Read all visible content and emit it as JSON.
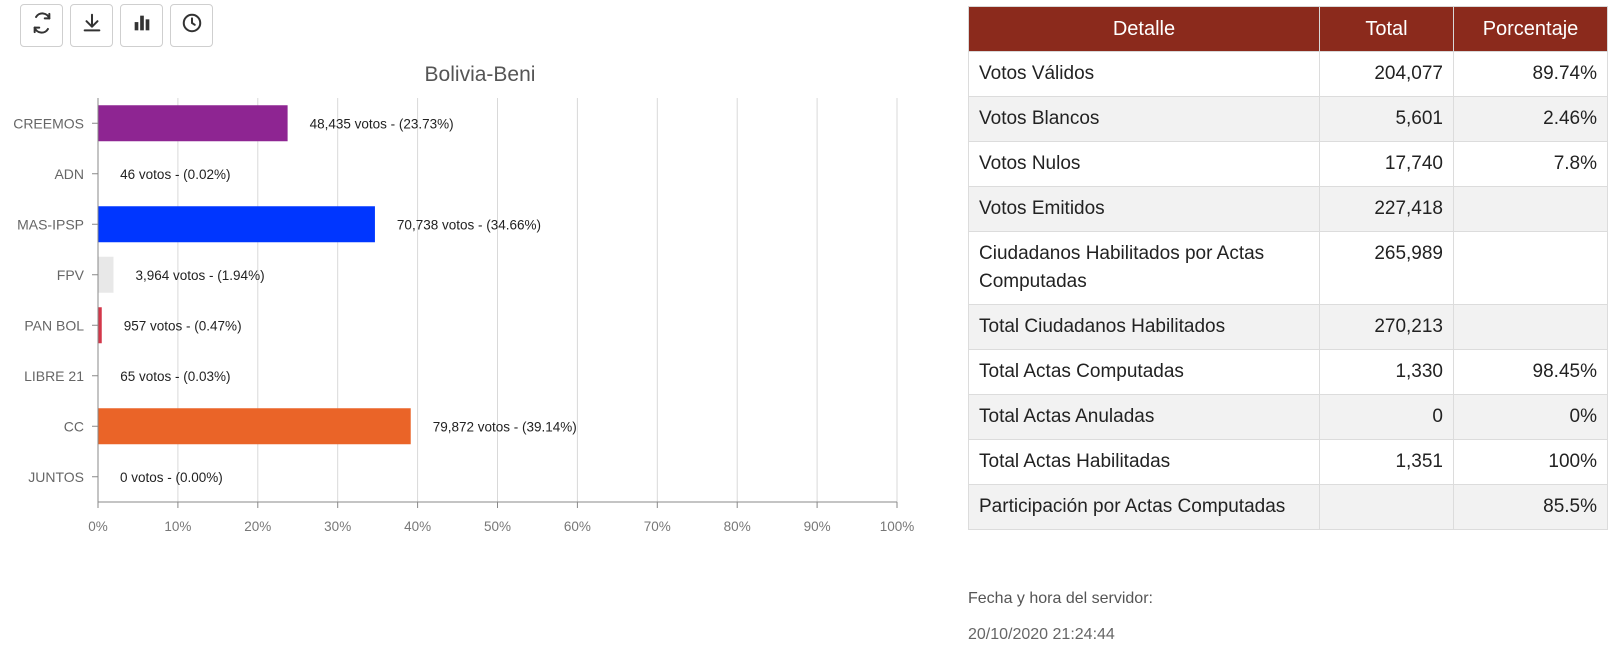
{
  "toolbar": {
    "buttons": [
      {
        "icon": "refresh-icon"
      },
      {
        "icon": "download-icon"
      },
      {
        "icon": "bar-chart-icon"
      },
      {
        "icon": "clock-icon"
      }
    ]
  },
  "chart_data": {
    "type": "bar",
    "orientation": "horizontal",
    "title": "Bolivia-Beni",
    "categories": [
      "CREEMOS",
      "ADN",
      "MAS-IPSP",
      "FPV",
      "PAN BOL",
      "LIBRE 21",
      "CC",
      "JUNTOS"
    ],
    "values": [
      23.73,
      0.02,
      34.66,
      1.94,
      0.47,
      0.03,
      39.14,
      0.0
    ],
    "votes": [
      48435,
      46,
      70738,
      3964,
      957,
      65,
      79872,
      0
    ],
    "labels": [
      "48,435 votos - (23.73%)",
      "46 votos - (0.02%)",
      "70,738 votos - (34.66%)",
      "3,964 votos - (1.94%)",
      "957 votos - (0.47%)",
      "65 votos - (0.03%)",
      "79,872 votos - (39.14%)",
      "0 votos - (0.00%)"
    ],
    "colors": [
      "#8e2592",
      "#ffffff",
      "#0036ff",
      "#e8e8e8",
      "#d3374a",
      "#ffffff",
      "#ea6428",
      "#ffffff"
    ],
    "xlim": [
      0,
      100
    ],
    "xticks": [
      "0%",
      "10%",
      "20%",
      "30%",
      "40%",
      "50%",
      "60%",
      "70%",
      "80%",
      "90%",
      "100%"
    ],
    "grid": true,
    "xlabel": "",
    "ylabel": ""
  },
  "table": {
    "headers": [
      "Detalle",
      "Total",
      "Porcentaje"
    ],
    "rows": [
      [
        "Votos Válidos",
        "204,077",
        "89.74%"
      ],
      [
        "Votos Blancos",
        "5,601",
        "2.46%"
      ],
      [
        "Votos Nulos",
        "17,740",
        "7.8%"
      ],
      [
        "Votos Emitidos",
        "227,418",
        ""
      ],
      [
        "Ciudadanos Habilitados por Actas Computadas",
        "265,989",
        ""
      ],
      [
        "Total Ciudadanos Habilitados",
        "270,213",
        ""
      ],
      [
        "Total Actas Computadas",
        "1,330",
        "98.45%"
      ],
      [
        "Total Actas Anuladas",
        "0",
        "0%"
      ],
      [
        "Total Actas Habilitadas",
        "1,351",
        "100%"
      ],
      [
        "Participación por Actas Computadas",
        "",
        "85.5%"
      ]
    ]
  },
  "server": {
    "label": "Fecha y hora del servidor:",
    "datetime": "20/10/2020 21:24:44"
  }
}
